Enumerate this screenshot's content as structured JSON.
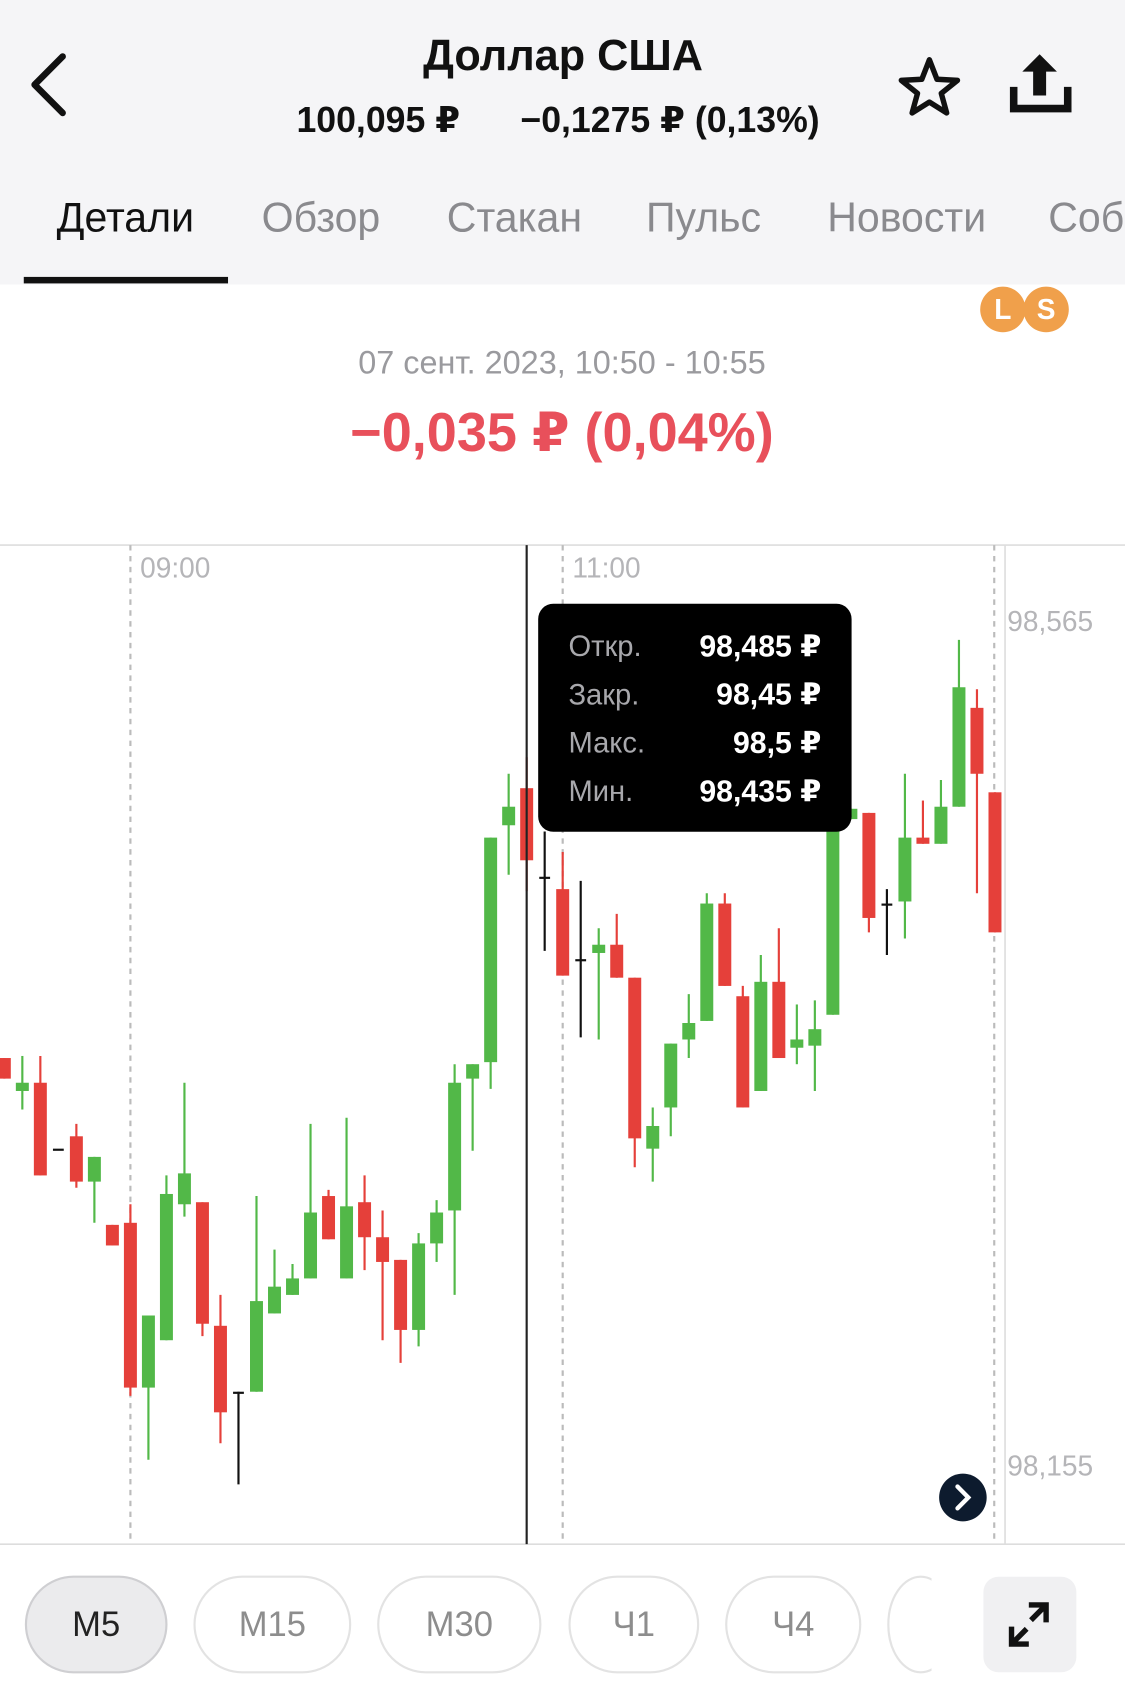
{
  "header": {
    "title": "Доллар США",
    "price": "100,095 ₽",
    "change": "−0,1275 ₽ (0,13%)"
  },
  "tabs": [
    "Детали",
    "Обзор",
    "Стакан",
    "Пульс",
    "Новости",
    "Соб"
  ],
  "badges": [
    "L",
    "S"
  ],
  "period": "07 сент. 2023, 10:50 - 10:55",
  "period_change": "−0,035 ₽ (0,04%)",
  "chart_data": {
    "type": "candlestick",
    "categories": [
      null,
      null,
      null,
      null,
      null,
      null,
      null,
      "09:00",
      null,
      null,
      null,
      null,
      null,
      null,
      null,
      null,
      null,
      null,
      null,
      null,
      null,
      null,
      null,
      null,
      null,
      null,
      null,
      null,
      null,
      null,
      null,
      "11:00",
      null,
      null,
      null,
      null,
      null,
      null,
      null,
      null,
      null,
      null,
      null,
      null,
      null,
      null,
      null,
      null,
      null,
      null,
      null,
      null,
      null,
      null,
      null,
      null
    ],
    "open": [
      98.354,
      98.338,
      98.342,
      98.31,
      98.316,
      98.294,
      98.273,
      98.274,
      98.194,
      98.217,
      98.283,
      98.284,
      98.224,
      98.192,
      98.192,
      98.23,
      98.239,
      98.247,
      98.287,
      98.247,
      98.284,
      98.267,
      98.256,
      98.222,
      98.264,
      98.28,
      98.344,
      98.352,
      98.467,
      98.485,
      98.442,
      98.436,
      98.402,
      98.405,
      98.409,
      98.393,
      98.31,
      98.33,
      98.363,
      98.372,
      98.429,
      98.384,
      98.338,
      98.391,
      98.359,
      98.36,
      98.375,
      98.47,
      98.473,
      98.429,
      98.43,
      98.461,
      98.458,
      98.476,
      98.524,
      98.483
    ],
    "high": [
      98.354,
      98.355,
      98.355,
      98.31,
      98.322,
      98.306,
      98.273,
      98.283,
      98.229,
      98.297,
      98.342,
      98.284,
      98.239,
      98.192,
      98.287,
      98.261,
      98.254,
      98.322,
      98.29,
      98.325,
      98.297,
      98.28,
      98.256,
      98.269,
      98.285,
      98.351,
      98.351,
      98.461,
      98.492,
      98.5,
      98.464,
      98.454,
      98.44,
      98.417,
      98.424,
      98.393,
      98.33,
      98.361,
      98.385,
      98.434,
      98.434,
      98.389,
      98.404,
      98.417,
      98.38,
      98.382,
      98.48,
      98.475,
      98.473,
      98.436,
      98.492,
      98.479,
      98.489,
      98.557,
      98.533,
      98.483
    ],
    "low": [
      98.344,
      98.329,
      98.297,
      98.31,
      98.291,
      98.274,
      98.263,
      98.19,
      98.159,
      98.217,
      98.277,
      98.219,
      98.167,
      98.147,
      98.192,
      98.23,
      98.239,
      98.247,
      98.266,
      98.247,
      98.251,
      98.217,
      98.206,
      98.214,
      98.255,
      98.239,
      98.309,
      98.339,
      98.443,
      98.435,
      98.406,
      98.394,
      98.364,
      98.363,
      98.393,
      98.301,
      98.294,
      98.316,
      98.354,
      98.372,
      98.389,
      98.33,
      98.338,
      98.354,
      98.351,
      98.338,
      98.375,
      98.47,
      98.415,
      98.404,
      98.412,
      98.458,
      98.458,
      98.476,
      98.434,
      98.415
    ],
    "close": [
      98.344,
      98.342,
      98.297,
      98.31,
      98.294,
      98.306,
      98.263,
      98.194,
      98.229,
      98.288,
      98.298,
      98.225,
      98.182,
      98.192,
      98.236,
      98.243,
      98.247,
      98.279,
      98.266,
      98.282,
      98.267,
      98.255,
      98.222,
      98.264,
      98.279,
      98.342,
      98.351,
      98.461,
      98.476,
      98.45,
      98.442,
      98.394,
      98.402,
      98.409,
      98.393,
      98.315,
      98.321,
      98.361,
      98.371,
      98.429,
      98.389,
      98.33,
      98.391,
      98.354,
      98.363,
      98.368,
      98.476,
      98.475,
      98.422,
      98.429,
      98.461,
      98.458,
      98.476,
      98.534,
      98.492,
      98.415
    ],
    "ylim": [
      98.118,
      98.603
    ],
    "yticks": [
      {
        "value": 98.565,
        "label": "98,565"
      },
      {
        "value": 98.155,
        "label": "98,155"
      }
    ],
    "colors": {
      "up": "#52b848",
      "down": "#e5403a",
      "flat": "#111111"
    },
    "tooltip": {
      "index": 29,
      "rows": [
        {
          "label": "Откр.",
          "value_label": "98,485 ₽"
        },
        {
          "label": "Закр.",
          "value_label": "98,45 ₽"
        },
        {
          "label": "Макс.",
          "value_label": "98,5 ₽"
        },
        {
          "label": "Мин.",
          "value_label": "98,435 ₽"
        }
      ]
    }
  },
  "timeframes": [
    "M5",
    "M15",
    "M30",
    "Ч1",
    "Ч4"
  ]
}
